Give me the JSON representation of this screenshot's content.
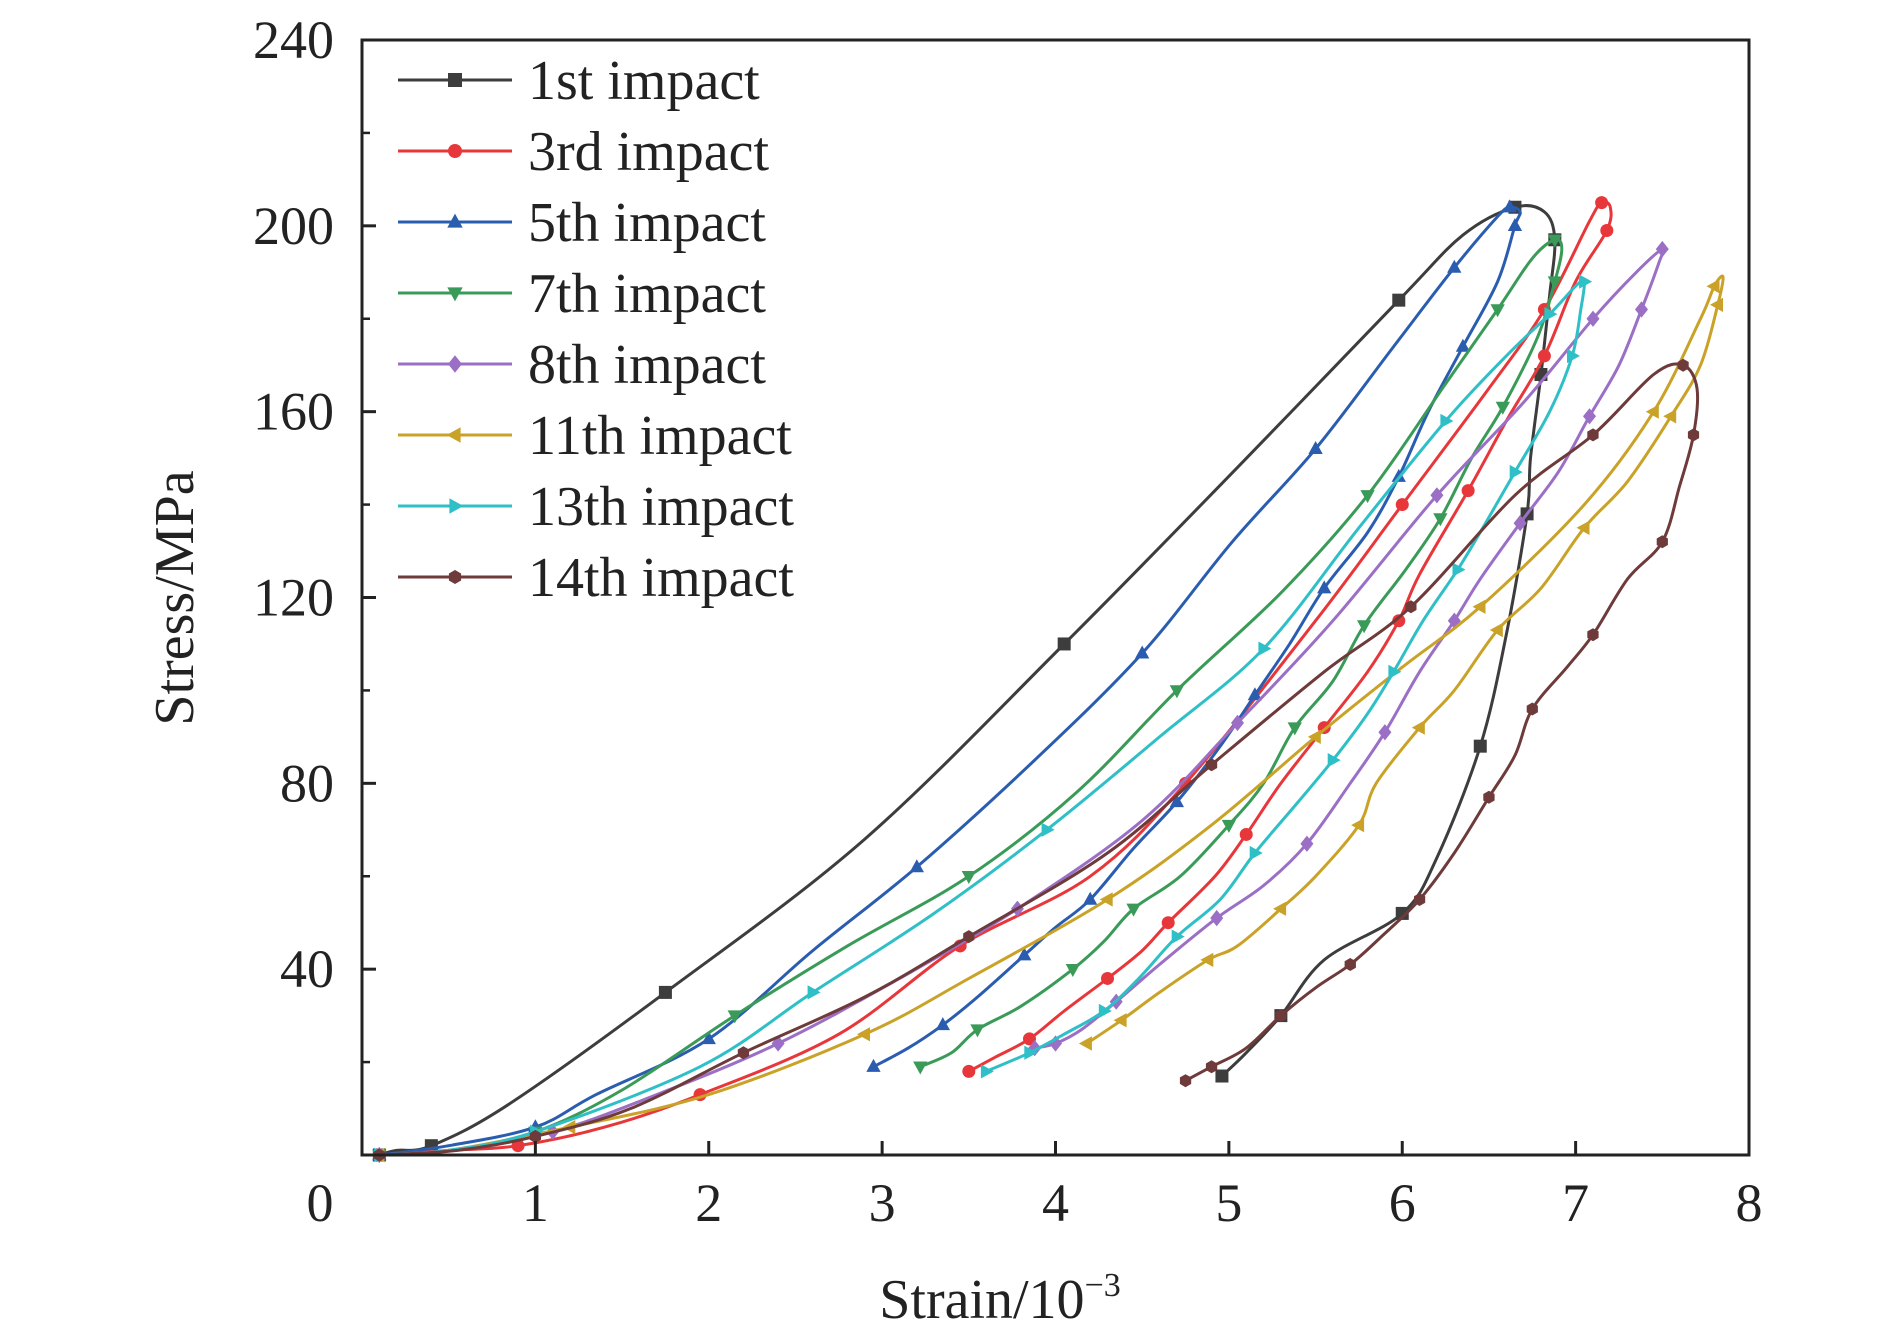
{
  "chart_data": {
    "type": "line",
    "title": "",
    "xlabel": "Strain/10",
    "xlabel_exponent": "−3",
    "ylabel": "Stress/MPa",
    "xlim": [
      0,
      8
    ],
    "ylim": [
      0,
      240
    ],
    "xticks": [
      "0",
      "1",
      "2",
      "3",
      "4",
      "5",
      "6",
      "7",
      "8"
    ],
    "yticks": [
      "40",
      "80",
      "120",
      "160",
      "200",
      "240"
    ],
    "grid": false,
    "legend_position": "top-left",
    "series": [
      {
        "name": "1st impact",
        "color": "#3d3d3d",
        "marker": "square",
        "points": [
          [
            0.1,
            0
          ],
          [
            0.2,
            1
          ],
          [
            0.4,
            2
          ],
          [
            0.85,
            11
          ],
          [
            1.75,
            35
          ],
          [
            2.9,
            68
          ],
          [
            4.05,
            110
          ],
          [
            5.05,
            148
          ],
          [
            5.98,
            184
          ],
          [
            6.35,
            198
          ],
          [
            6.65,
            204
          ],
          [
            6.82,
            203
          ],
          [
            6.88,
            197
          ],
          [
            6.85,
            185
          ],
          [
            6.8,
            168
          ],
          [
            6.74,
            150
          ],
          [
            6.72,
            138
          ],
          [
            6.6,
            112
          ],
          [
            6.45,
            88
          ],
          [
            6.2,
            64
          ],
          [
            6.0,
            52
          ],
          [
            5.55,
            42
          ],
          [
            5.3,
            30
          ],
          [
            5.1,
            22
          ],
          [
            4.96,
            17
          ]
        ]
      },
      {
        "name": "3rd impact",
        "color": "#e8373a",
        "marker": "circle",
        "points": [
          [
            0.1,
            0
          ],
          [
            0.5,
            1
          ],
          [
            0.9,
            2
          ],
          [
            1.4,
            6
          ],
          [
            1.95,
            13
          ],
          [
            2.75,
            26
          ],
          [
            3.45,
            45
          ],
          [
            4.2,
            60
          ],
          [
            4.75,
            80
          ],
          [
            5.5,
            115
          ],
          [
            6.0,
            140
          ],
          [
            6.5,
            165
          ],
          [
            6.82,
            182
          ],
          [
            7.08,
            201
          ],
          [
            7.15,
            205
          ],
          [
            7.2,
            204
          ],
          [
            7.18,
            199
          ],
          [
            7.0,
            188
          ],
          [
            6.82,
            172
          ],
          [
            6.6,
            158
          ],
          [
            6.38,
            143
          ],
          [
            6.1,
            125
          ],
          [
            5.98,
            115
          ],
          [
            5.8,
            104
          ],
          [
            5.55,
            92
          ],
          [
            5.3,
            80
          ],
          [
            5.1,
            69
          ],
          [
            4.92,
            60
          ],
          [
            4.65,
            50
          ],
          [
            4.5,
            44
          ],
          [
            4.3,
            38
          ],
          [
            4.05,
            31
          ],
          [
            3.85,
            25
          ],
          [
            3.65,
            21
          ],
          [
            3.5,
            18
          ]
        ]
      },
      {
        "name": "5th impact",
        "color": "#2a5db0",
        "marker": "triangle-up",
        "points": [
          [
            0.1,
            0
          ],
          [
            0.5,
            2
          ],
          [
            1.0,
            6
          ],
          [
            1.35,
            13
          ],
          [
            2.0,
            25
          ],
          [
            2.6,
            44
          ],
          [
            3.2,
            62
          ],
          [
            3.88,
            85
          ],
          [
            4.5,
            108
          ],
          [
            5.02,
            132
          ],
          [
            5.5,
            152
          ],
          [
            5.95,
            174
          ],
          [
            6.3,
            191
          ],
          [
            6.55,
            202
          ],
          [
            6.62,
            204
          ],
          [
            6.68,
            203
          ],
          [
            6.65,
            200
          ],
          [
            6.55,
            188
          ],
          [
            6.35,
            174
          ],
          [
            6.15,
            160
          ],
          [
            5.98,
            146
          ],
          [
            5.8,
            134
          ],
          [
            5.55,
            122
          ],
          [
            5.35,
            110
          ],
          [
            5.15,
            99
          ],
          [
            4.95,
            88
          ],
          [
            4.7,
            76
          ],
          [
            4.45,
            66
          ],
          [
            4.2,
            55
          ],
          [
            4.0,
            49
          ],
          [
            3.82,
            43
          ],
          [
            3.55,
            34
          ],
          [
            3.35,
            28
          ],
          [
            3.15,
            23
          ],
          [
            2.95,
            19
          ]
        ]
      },
      {
        "name": "7th impact",
        "color": "#3a9b58",
        "marker": "triangle-down",
        "points": [
          [
            0.1,
            0
          ],
          [
            0.5,
            1
          ],
          [
            1.0,
            5
          ],
          [
            1.5,
            14
          ],
          [
            2.15,
            30
          ],
          [
            2.8,
            45
          ],
          [
            3.5,
            60
          ],
          [
            4.12,
            78
          ],
          [
            4.7,
            100
          ],
          [
            5.3,
            121
          ],
          [
            5.8,
            142
          ],
          [
            6.25,
            166
          ],
          [
            6.55,
            182
          ],
          [
            6.75,
            193
          ],
          [
            6.88,
            197
          ],
          [
            6.92,
            195
          ],
          [
            6.88,
            188
          ],
          [
            6.78,
            176
          ],
          [
            6.58,
            161
          ],
          [
            6.4,
            150
          ],
          [
            6.22,
            137
          ],
          [
            6.02,
            126
          ],
          [
            5.78,
            114
          ],
          [
            5.6,
            102
          ],
          [
            5.38,
            92
          ],
          [
            5.2,
            80
          ],
          [
            5.0,
            71
          ],
          [
            4.72,
            60
          ],
          [
            4.45,
            53
          ],
          [
            4.28,
            46
          ],
          [
            4.1,
            40
          ],
          [
            3.8,
            32
          ],
          [
            3.55,
            27
          ],
          [
            3.4,
            22
          ],
          [
            3.22,
            19
          ]
        ]
      },
      {
        "name": "8th impact",
        "color": "#9a6fc5",
        "marker": "diamond",
        "points": [
          [
            0.1,
            0
          ],
          [
            0.5,
            1
          ],
          [
            1.1,
            5
          ],
          [
            1.7,
            13
          ],
          [
            2.4,
            24
          ],
          [
            3.1,
            38
          ],
          [
            3.78,
            53
          ],
          [
            4.5,
            72
          ],
          [
            5.05,
            93
          ],
          [
            5.6,
            115
          ],
          [
            6.2,
            142
          ],
          [
            6.7,
            162
          ],
          [
            7.1,
            180
          ],
          [
            7.35,
            190
          ],
          [
            7.5,
            195
          ],
          [
            7.48,
            192
          ],
          [
            7.38,
            182
          ],
          [
            7.25,
            170
          ],
          [
            7.08,
            159
          ],
          [
            6.9,
            147
          ],
          [
            6.68,
            136
          ],
          [
            6.45,
            124
          ],
          [
            6.3,
            115
          ],
          [
            6.1,
            104
          ],
          [
            5.9,
            91
          ],
          [
            5.7,
            80
          ],
          [
            5.45,
            67
          ],
          [
            5.2,
            58
          ],
          [
            4.93,
            51
          ],
          [
            4.6,
            41
          ],
          [
            4.35,
            33
          ],
          [
            4.15,
            27
          ],
          [
            4.0,
            24
          ],
          [
            3.88,
            23
          ]
        ]
      },
      {
        "name": "11th impact",
        "color": "#c9a227",
        "marker": "triangle-left",
        "points": [
          [
            0.1,
            0
          ],
          [
            0.5,
            1
          ],
          [
            1.2,
            6
          ],
          [
            2.0,
            13
          ],
          [
            2.9,
            26
          ],
          [
            3.5,
            38
          ],
          [
            4.3,
            55
          ],
          [
            4.9,
            71
          ],
          [
            5.5,
            90
          ],
          [
            6.0,
            105
          ],
          [
            6.45,
            118
          ],
          [
            7.05,
            140
          ],
          [
            7.45,
            160
          ],
          [
            7.72,
            180
          ],
          [
            7.8,
            187
          ],
          [
            7.85,
            189
          ],
          [
            7.82,
            183
          ],
          [
            7.72,
            170
          ],
          [
            7.55,
            159
          ],
          [
            7.3,
            145
          ],
          [
            7.05,
            135
          ],
          [
            6.8,
            122
          ],
          [
            6.55,
            113
          ],
          [
            6.3,
            100
          ],
          [
            6.1,
            92
          ],
          [
            5.85,
            80
          ],
          [
            5.75,
            71
          ],
          [
            5.5,
            60
          ],
          [
            5.3,
            53
          ],
          [
            5.05,
            45
          ],
          [
            4.88,
            42
          ],
          [
            4.6,
            35
          ],
          [
            4.38,
            29
          ],
          [
            4.18,
            24
          ]
        ]
      },
      {
        "name": "13th impact",
        "color": "#2fbfc6",
        "marker": "triangle-right",
        "points": [
          [
            0.1,
            0
          ],
          [
            0.5,
            1
          ],
          [
            1.0,
            5
          ],
          [
            1.95,
            19
          ],
          [
            2.6,
            35
          ],
          [
            3.3,
            52
          ],
          [
            3.95,
            70
          ],
          [
            4.6,
            90
          ],
          [
            5.2,
            109
          ],
          [
            5.75,
            135
          ],
          [
            6.25,
            158
          ],
          [
            6.6,
            172
          ],
          [
            6.85,
            181
          ],
          [
            7.0,
            187
          ],
          [
            7.05,
            188
          ],
          [
            7.03,
            182
          ],
          [
            6.98,
            172
          ],
          [
            6.85,
            160
          ],
          [
            6.65,
            147
          ],
          [
            6.48,
            136
          ],
          [
            6.32,
            126
          ],
          [
            6.12,
            115
          ],
          [
            5.95,
            104
          ],
          [
            5.8,
            95
          ],
          [
            5.6,
            85
          ],
          [
            5.4,
            76
          ],
          [
            5.15,
            65
          ],
          [
            4.95,
            55
          ],
          [
            4.7,
            47
          ],
          [
            4.48,
            38
          ],
          [
            4.28,
            31
          ],
          [
            4.05,
            26
          ],
          [
            3.85,
            22
          ],
          [
            3.6,
            18
          ]
        ]
      },
      {
        "name": "14th impact",
        "color": "#6e3a3a",
        "marker": "hexagon",
        "points": [
          [
            0.1,
            0
          ],
          [
            0.55,
            1
          ],
          [
            1.0,
            4
          ],
          [
            1.55,
            10
          ],
          [
            2.2,
            22
          ],
          [
            2.9,
            34
          ],
          [
            3.5,
            47
          ],
          [
            4.3,
            65
          ],
          [
            4.9,
            84
          ],
          [
            5.55,
            104
          ],
          [
            6.05,
            118
          ],
          [
            6.65,
            142
          ],
          [
            7.1,
            155
          ],
          [
            7.45,
            168
          ],
          [
            7.62,
            170
          ],
          [
            7.7,
            165
          ],
          [
            7.68,
            155
          ],
          [
            7.6,
            144
          ],
          [
            7.5,
            132
          ],
          [
            7.3,
            124
          ],
          [
            7.1,
            112
          ],
          [
            6.95,
            105
          ],
          [
            6.75,
            96
          ],
          [
            6.65,
            86
          ],
          [
            6.5,
            77
          ],
          [
            6.3,
            65
          ],
          [
            6.1,
            55
          ],
          [
            5.88,
            47
          ],
          [
            5.7,
            41
          ],
          [
            5.5,
            36
          ],
          [
            5.3,
            30
          ],
          [
            5.1,
            23
          ],
          [
            4.9,
            19
          ],
          [
            4.75,
            16
          ]
        ]
      }
    ]
  }
}
